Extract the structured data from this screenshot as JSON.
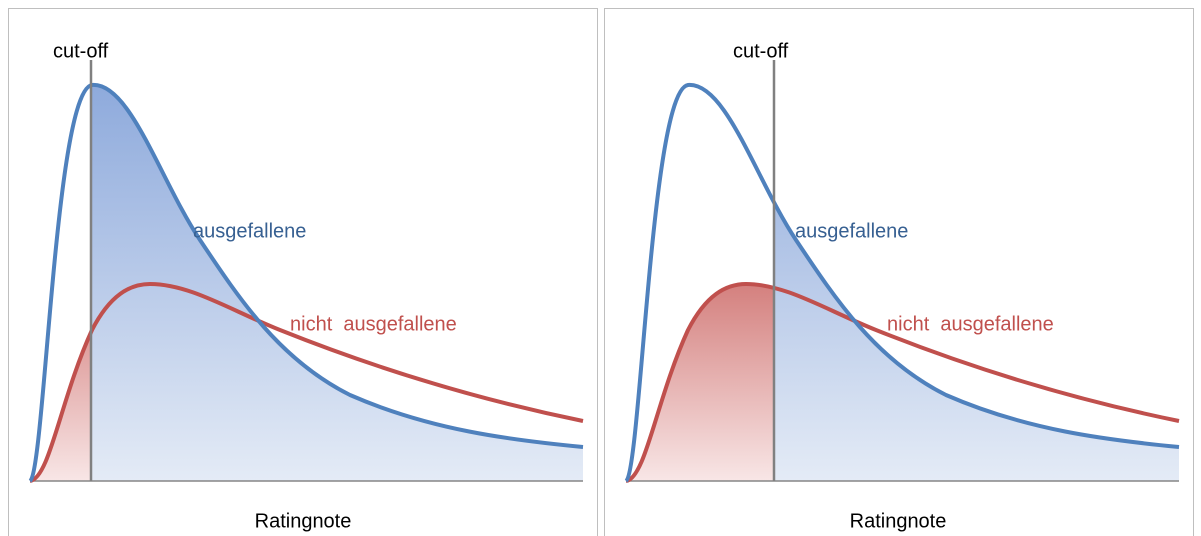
{
  "panels": [
    {
      "cutoff_label": "cut-off",
      "defaulted_label": "ausgefallene",
      "non_defaulted_label": "nicht  ausgefallene",
      "x_axis_label": "Ratingnote"
    },
    {
      "cutoff_label": "cut-off",
      "defaulted_label": "ausgefallene",
      "non_defaulted_label": "nicht  ausgefallene",
      "x_axis_label": "Ratingnote"
    }
  ]
}
